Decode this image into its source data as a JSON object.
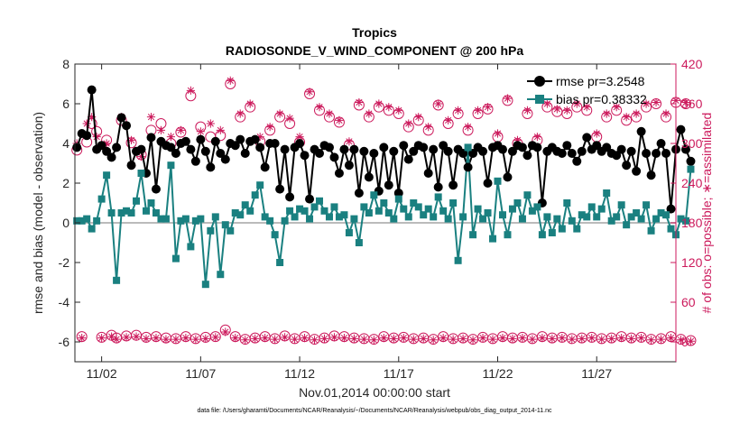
{
  "chart_data": {
    "type": "line",
    "title": "Tropics",
    "subtitle": "RADIOSONDE_V_WIND_COMPONENT @ 200 hPa",
    "xlabel": "Nov.01,2014 00:00:00 start",
    "ylabel": "rmse and bias (model - observation)",
    "y2label": "# of obs: o=possible; ∗=assimilated",
    "footnote": "data file: /Users/gharamti/Documents/NCAR/Reanalysis/~/Documents/NCAR/Reanalysis/webpub/obs_diag_output_2014-11.nc",
    "xlim": [
      0.65,
      31.0
    ],
    "ylim": [
      -7,
      8
    ],
    "y2lim": [
      -30,
      420
    ],
    "xticks": [
      2,
      7,
      12,
      17,
      22,
      27
    ],
    "xticklabels": [
      "11/02",
      "11/07",
      "11/12",
      "11/17",
      "11/22",
      "11/27"
    ],
    "yticks": [
      -6,
      -4,
      -2,
      0,
      2,
      4,
      6,
      8
    ],
    "yticklabels": [
      "-6",
      "-4",
      "-2",
      "0",
      "2",
      "4",
      "6",
      "8"
    ],
    "y2ticks": [
      0,
      60,
      120,
      180,
      240,
      300,
      360,
      420
    ],
    "y2ticklabels": [
      "0",
      "60",
      "120",
      "180",
      "240",
      "300",
      "360",
      "420"
    ],
    "zero_line": 0,
    "legend_position": "top-right",
    "x_start": 0.75,
    "x_step": 0.25,
    "colors": {
      "rmse": "#000000",
      "bias": "#1a8080",
      "obs": "#cc1a5c",
      "zero": "#bbbbbb"
    },
    "series": [
      {
        "name": "rmse pr=3.2548",
        "marker": "circle",
        "values": [
          3.8,
          4.5,
          4.4,
          6.7,
          3.7,
          3.9,
          3.6,
          3.3,
          3.8,
          5.3,
          4.9,
          2.9,
          3.6,
          3.7,
          2.5,
          4.3,
          1.7,
          4.1,
          3.9,
          3.8,
          3.5,
          4.0,
          4.1,
          3.7,
          3.1,
          4.2,
          3.6,
          2.8,
          4.1,
          3.5,
          3.2,
          4.0,
          3.9,
          4.2,
          3.5,
          4.1,
          4.2,
          3.8,
          2.8,
          4.0,
          4.0,
          1.7,
          3.7,
          1.3,
          3.8,
          4.0,
          3.4,
          1.2,
          3.7,
          3.5,
          3.9,
          3.8,
          3.3,
          2.5,
          3.7,
          2.9,
          3.7,
          1.5,
          3.6,
          2.3,
          3.5,
          1.6,
          3.8,
          1.9,
          3.6,
          1.5,
          3.9,
          3.2,
          3.6,
          3.9,
          3.8,
          2.5,
          3.7,
          1.8,
          3.9,
          3.6,
          1.9,
          3.7,
          3.5,
          2.8,
          3.5,
          3.8,
          3.6,
          2.0,
          3.8,
          3.9,
          3.7,
          2.3,
          3.6,
          3.9,
          3.8,
          3.4,
          3.9,
          3.8,
          1.0,
          3.6,
          3.8,
          3.6,
          3.5,
          3.9,
          3.5,
          3.1,
          3.6,
          4.3,
          3.7,
          3.9,
          3.6,
          3.8,
          3.5,
          3.4,
          3.7,
          2.9,
          3.6,
          2.6,
          4.6,
          3.5,
          2.4,
          3.5,
          4.0,
          3.5,
          0.7,
          3.7,
          4.7,
          3.7,
          3.1
        ]
      },
      {
        "name": "bias pr=0.38332",
        "marker": "square",
        "values": [
          0.1,
          0.1,
          0.2,
          -0.3,
          0.1,
          1.2,
          2.4,
          0.5,
          -2.9,
          0.5,
          0.6,
          0.5,
          1.1,
          2.5,
          0.6,
          1.0,
          0.5,
          0.2,
          0.2,
          2.9,
          -1.8,
          0.1,
          0.2,
          -1.2,
          0.1,
          0.2,
          -3.1,
          -0.4,
          0.3,
          -2.6,
          -0.1,
          -0.4,
          0.5,
          0.4,
          0.9,
          0.6,
          1.4,
          1.9,
          0.3,
          0.1,
          -0.6,
          -2.0,
          0.1,
          0.6,
          0.3,
          0.7,
          0.6,
          0.2,
          0.8,
          1.1,
          0.6,
          0.3,
          0.8,
          0.3,
          0.4,
          -0.5,
          0.2,
          -1.0,
          0.8,
          0.5,
          1.4,
          0.6,
          1.0,
          0.5,
          0.2,
          1.2,
          0.7,
          0.3,
          1.0,
          0.8,
          0.4,
          0.7,
          0.3,
          1.3,
          0.6,
          0.2,
          1.0,
          -1.9,
          0.3,
          3.8,
          -0.6,
          0.7,
          0.2,
          0.5,
          -0.8,
          2.1,
          0.4,
          -0.6,
          0.7,
          1.0,
          0.2,
          1.4,
          0.6,
          0.8,
          -0.6,
          0.3,
          -0.5,
          0.2,
          -0.3,
          1.0,
          0.1,
          -0.3,
          0.4,
          0.3,
          0.8,
          0.3,
          0.7,
          1.5,
          0.1,
          0.3,
          0.9,
          -0.1,
          0.3,
          0.5,
          0.2,
          0.9,
          -0.4,
          0.2,
          0.5,
          0.4,
          -0.3,
          -0.6,
          0.2,
          0.1,
          2.7
        ]
      },
      {
        "name": "possible",
        "axis": "right",
        "marker": "circle-open",
        "values": [
          290,
          8,
          302,
          330,
          318,
          7,
          305,
          10,
          6,
          335,
          9,
          301,
          10,
          283,
          7,
          320,
          8,
          330,
          6,
          300,
          5,
          317,
          8,
          372,
          5,
          325,
          7,
          310,
          8,
          312,
          18,
          390,
          8,
          340,
          4,
          355,
          6,
          303,
          8,
          320,
          5,
          340,
          9,
          330,
          5,
          302,
          8,
          375,
          4,
          350,
          6,
          340,
          9,
          332,
          8,
          298,
          6,
          358,
          5,
          340,
          4,
          355,
          8,
          350,
          6,
          345,
          7,
          325,
          5,
          335,
          6,
          320,
          4,
          358,
          8,
          330,
          5,
          345,
          6,
          320,
          4,
          345,
          7,
          352,
          5,
          310,
          8,
          365,
          6,
          300,
          7,
          345,
          5,
          305,
          8,
          355,
          6,
          348,
          7,
          345,
          5,
          355,
          6,
          350,
          7,
          310,
          5,
          340,
          6,
          350,
          8,
          335,
          6,
          340,
          7,
          355,
          4,
          360,
          5,
          340,
          8,
          362,
          4,
          360,
          2
        ]
      },
      {
        "name": "assimilated",
        "axis": "right",
        "marker": "star",
        "values": [
          300,
          6,
          330,
          340,
          310,
          6,
          300,
          8,
          4,
          340,
          7,
          305,
          8,
          280,
          5,
          340,
          6,
          320,
          4,
          310,
          4,
          320,
          6,
          380,
          4,
          318,
          5,
          330,
          7,
          320,
          15,
          395,
          6,
          345,
          3,
          360,
          5,
          310,
          6,
          325,
          4,
          345,
          7,
          338,
          4,
          310,
          6,
          378,
          3,
          355,
          5,
          345,
          7,
          335,
          6,
          303,
          5,
          362,
          4,
          345,
          3,
          360,
          6,
          355,
          5,
          350,
          6,
          330,
          4,
          340,
          5,
          325,
          3,
          360,
          6,
          335,
          4,
          350,
          5,
          325,
          3,
          350,
          6,
          355,
          4,
          315,
          6,
          368,
          5,
          305,
          6,
          350,
          4,
          310,
          6,
          360,
          5,
          352,
          6,
          350,
          4,
          360,
          5,
          355,
          6,
          315,
          4,
          345,
          5,
          355,
          6,
          340,
          5,
          345,
          6,
          360,
          3,
          362,
          4,
          345,
          6,
          365,
          3,
          362,
          1
        ]
      }
    ]
  }
}
